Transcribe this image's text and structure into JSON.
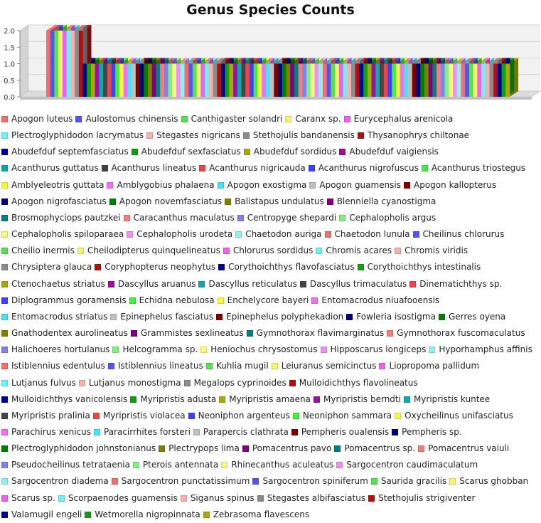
{
  "chart_data": {
    "type": "bar",
    "title": "Genus Species Counts",
    "xlabel": "",
    "ylabel": "",
    "ylim": [
      0,
      2.0
    ],
    "yticks": [
      "0.0",
      "0.5",
      "1.0",
      "1.5",
      "2.0"
    ],
    "legend_position": "bottom",
    "palette": [
      "#f26d6d",
      "#5555ee",
      "#55e055",
      "#f5f56b",
      "#f060f0",
      "#70f0f0",
      "#f5b0b0",
      "#8c8c8c",
      "#b01010",
      "#000099",
      "#10a010",
      "#a8a810",
      "#a010a0",
      "#10a8a8",
      "#444444",
      "#ea4848",
      "#4040ff",
      "#40f040",
      "#f8f840",
      "#f070f0",
      "#50e0f0",
      "#c0c0c0",
      "#800000",
      "#000080",
      "#008000",
      "#808000",
      "#800080",
      "#008080",
      "#f08080",
      "#8080f0",
      "#80f080",
      "#f8f880",
      "#f090f0",
      "#90f0f0"
    ],
    "series": [
      {
        "name": "Apogon luteus",
        "values": [
          2
        ]
      },
      {
        "name": "Aulostomus chinensis",
        "values": [
          2
        ]
      },
      {
        "name": "Canthigaster solandri",
        "values": [
          2
        ]
      },
      {
        "name": "Caranx sp.",
        "values": [
          2
        ]
      },
      {
        "name": "Eurycephalus arenicola",
        "values": [
          2
        ]
      },
      {
        "name": "Plectroglyphidodon lacrymatus",
        "values": [
          2
        ]
      },
      {
        "name": "Stegastes nigricans",
        "values": [
          2
        ]
      },
      {
        "name": "Stethojulis bandanensis",
        "values": [
          2
        ]
      },
      {
        "name": "Thysanophrys chiltonae",
        "values": [
          2
        ]
      },
      {
        "name": "Abudefduf septemfasciatus",
        "values": [
          1
        ]
      },
      {
        "name": "Abudefduf sexfasciatus",
        "values": [
          1
        ]
      },
      {
        "name": "Abudefduf sordidus",
        "values": [
          1
        ]
      },
      {
        "name": "Abudefduf vaigiensis",
        "values": [
          1
        ]
      },
      {
        "name": "Acanthurus guttatus",
        "values": [
          1
        ]
      },
      {
        "name": "Acanthurus lineatus",
        "values": [
          1
        ]
      },
      {
        "name": "Acanthurus nigricauda",
        "values": [
          1
        ]
      },
      {
        "name": "Acanthurus nigrofuscus",
        "values": [
          1
        ]
      },
      {
        "name": "Acanthurus triostegus",
        "values": [
          1
        ]
      },
      {
        "name": "Amblyeleotris guttata",
        "values": [
          1
        ]
      },
      {
        "name": "Amblygobius phalaena",
        "values": [
          1
        ]
      },
      {
        "name": "Apogon exostigma",
        "values": [
          1
        ]
      },
      {
        "name": "Apogon guamensis",
        "values": [
          1
        ]
      },
      {
        "name": "Apogon kallopterus",
        "values": [
          1
        ]
      },
      {
        "name": "Apogon nigrofasciatus",
        "values": [
          1
        ]
      },
      {
        "name": "Apogon novemfasciatus",
        "values": [
          1
        ]
      },
      {
        "name": "Balistapus undulatus",
        "values": [
          1
        ]
      },
      {
        "name": "Blenniella cyanostigma",
        "values": [
          1
        ]
      },
      {
        "name": "Brosmophyciops pautzkei",
        "values": [
          1
        ]
      },
      {
        "name": "Caracanthus maculatus",
        "values": [
          1
        ]
      },
      {
        "name": "Centropyge shepardi",
        "values": [
          1
        ]
      },
      {
        "name": "Cephalopholis argus",
        "values": [
          1
        ]
      },
      {
        "name": "Cephalopholis spiloparaea",
        "values": [
          1
        ]
      },
      {
        "name": "Cephalopholis urodeta",
        "values": [
          1
        ]
      },
      {
        "name": "Chaetodon auriga",
        "values": [
          1
        ]
      },
      {
        "name": "Chaetodon lunula",
        "values": [
          1
        ]
      },
      {
        "name": "Cheilinus chlorurus",
        "values": [
          1
        ]
      },
      {
        "name": "Cheilio inermis",
        "values": [
          1
        ]
      },
      {
        "name": "Cheilodipterus quinquelineatus",
        "values": [
          1
        ]
      },
      {
        "name": "Chlorurus sordidus",
        "values": [
          1
        ]
      },
      {
        "name": "Chromis acares",
        "values": [
          1
        ]
      },
      {
        "name": "Chromis viridis",
        "values": [
          1
        ]
      },
      {
        "name": "Chrysiptera glauca",
        "values": [
          1
        ]
      },
      {
        "name": "Coryphopterus neophytus",
        "values": [
          1
        ]
      },
      {
        "name": "Corythoichthys flavofasciatus",
        "values": [
          1
        ]
      },
      {
        "name": "Corythoichthys intestinalis",
        "values": [
          1
        ]
      },
      {
        "name": "Ctenochaetus striatus",
        "values": [
          1
        ]
      },
      {
        "name": "Dascyllus aruanus",
        "values": [
          1
        ]
      },
      {
        "name": "Dascyllus reticulatus",
        "values": [
          1
        ]
      },
      {
        "name": "Dascyllus trimaculatus",
        "values": [
          1
        ]
      },
      {
        "name": "Dinematichthys sp.",
        "values": [
          1
        ]
      },
      {
        "name": "Diplogrammus goramensis",
        "values": [
          1
        ]
      },
      {
        "name": "Echidna nebulosa",
        "values": [
          1
        ]
      },
      {
        "name": "Enchelycore bayeri",
        "values": [
          1
        ]
      },
      {
        "name": "Entomacrodus niuafooensis",
        "values": [
          1
        ]
      },
      {
        "name": "Entomacrodus striatus",
        "values": [
          1
        ]
      },
      {
        "name": "Epinephelus fasciatus",
        "values": [
          1
        ]
      },
      {
        "name": "Epinephelus polyphekadion",
        "values": [
          1
        ]
      },
      {
        "name": "Fowleria isostigma",
        "values": [
          1
        ]
      },
      {
        "name": "Gerres oyena",
        "values": [
          1
        ]
      },
      {
        "name": "Gnathodentex aurolineatus",
        "values": [
          1
        ]
      },
      {
        "name": "Grammistes sexlineatus",
        "values": [
          1
        ]
      },
      {
        "name": "Gymnothorax flavimarginatus",
        "values": [
          1
        ]
      },
      {
        "name": "Gymnothorax fuscomaculatus",
        "values": [
          1
        ]
      },
      {
        "name": "Halichoeres hortulanus",
        "values": [
          1
        ]
      },
      {
        "name": "Helcogramma sp.",
        "values": [
          1
        ]
      },
      {
        "name": "Heniochus chrysostomus",
        "values": [
          1
        ]
      },
      {
        "name": "Hipposcarus longiceps",
        "values": [
          1
        ]
      },
      {
        "name": "Hyporhamphus affinis",
        "values": [
          1
        ]
      },
      {
        "name": "Istiblennius edentulus",
        "values": [
          1
        ]
      },
      {
        "name": "Istiblennius lineatus",
        "values": [
          1
        ]
      },
      {
        "name": "Kuhlia mugil",
        "values": [
          1
        ]
      },
      {
        "name": "Leiuranus semicinctus",
        "values": [
          1
        ]
      },
      {
        "name": "Liopropoma pallidum",
        "values": [
          1
        ]
      },
      {
        "name": "Lutjanus fulvus",
        "values": [
          1
        ]
      },
      {
        "name": "Lutjanus monostigma",
        "values": [
          1
        ]
      },
      {
        "name": "Megalops cyprinoides",
        "values": [
          1
        ]
      },
      {
        "name": "Mulloidichthys flavolineatus",
        "values": [
          1
        ]
      },
      {
        "name": "Mulloidichthys vanicolensis",
        "values": [
          1
        ]
      },
      {
        "name": "Myripristis adusta",
        "values": [
          1
        ]
      },
      {
        "name": "Myripristis amaena",
        "values": [
          1
        ]
      },
      {
        "name": "Myripristis berndti",
        "values": [
          1
        ]
      },
      {
        "name": "Myripristis kuntee",
        "values": [
          1
        ]
      },
      {
        "name": "Myripristis pralinia",
        "values": [
          1
        ]
      },
      {
        "name": "Myripristis violacea",
        "values": [
          1
        ]
      },
      {
        "name": "Neoniphon argenteus",
        "values": [
          1
        ]
      },
      {
        "name": "Neoniphon sammara",
        "values": [
          1
        ]
      },
      {
        "name": "Oxycheilinus unifasciatus",
        "values": [
          1
        ]
      },
      {
        "name": "Parachirus xenicus",
        "values": [
          1
        ]
      },
      {
        "name": "Paracirrhites forsteri",
        "values": [
          1
        ]
      },
      {
        "name": "Parapercis clathrata",
        "values": [
          1
        ]
      },
      {
        "name": "Pempheris oualensis",
        "values": [
          1
        ]
      },
      {
        "name": "Pempheris sp.",
        "values": [
          1
        ]
      },
      {
        "name": "Plectroglyphidodon johnstonianus",
        "values": [
          1
        ]
      },
      {
        "name": "Plectrypops lima",
        "values": [
          1
        ]
      },
      {
        "name": "Pomacentrus pavo",
        "values": [
          1
        ]
      },
      {
        "name": "Pomacentrus sp.",
        "values": [
          1
        ]
      },
      {
        "name": "Pomacentrus vaiuli",
        "values": [
          1
        ]
      },
      {
        "name": "Pseudocheilinus tetrataenia",
        "values": [
          1
        ]
      },
      {
        "name": "Pterois antennata",
        "values": [
          1
        ]
      },
      {
        "name": "Rhinecanthus aculeatus",
        "values": [
          1
        ]
      },
      {
        "name": "Sargocentron caudimaculatum",
        "values": [
          1
        ]
      },
      {
        "name": "Sargocentron diadema",
        "values": [
          1
        ]
      },
      {
        "name": "Sargocentron punctatissimum",
        "values": [
          1
        ]
      },
      {
        "name": "Sargocentron spiniferum",
        "values": [
          1
        ]
      },
      {
        "name": "Saurida gracilis",
        "values": [
          1
        ]
      },
      {
        "name": "Scarus ghobban",
        "values": [
          1
        ]
      },
      {
        "name": "Scarus sp.",
        "values": [
          1
        ]
      },
      {
        "name": "Scorpaenodes guamensis",
        "values": [
          1
        ]
      },
      {
        "name": "Siganus spinus",
        "values": [
          1
        ]
      },
      {
        "name": "Stegastes albifasciatus",
        "values": [
          1
        ]
      },
      {
        "name": "Stethojulis strigiventer",
        "values": [
          1
        ]
      },
      {
        "name": "Valamugil engeli",
        "values": [
          1
        ]
      },
      {
        "name": "Wetmorella nigropinnata",
        "values": [
          1
        ]
      },
      {
        "name": "Zebrasoma flavescens",
        "values": [
          1
        ]
      }
    ]
  }
}
